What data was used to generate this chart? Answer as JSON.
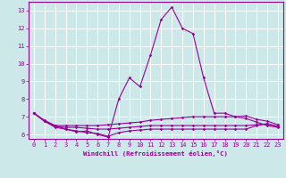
{
  "xlabel": "Windchill (Refroidissement éolien,°C)",
  "x_values": [
    0,
    1,
    2,
    3,
    4,
    5,
    6,
    7,
    8,
    9,
    10,
    11,
    12,
    13,
    14,
    15,
    16,
    17,
    18,
    19,
    20,
    21,
    22,
    23
  ],
  "line1": [
    7.2,
    6.8,
    6.5,
    6.3,
    6.15,
    6.2,
    6.0,
    5.85,
    8.0,
    9.2,
    8.7,
    10.5,
    12.5,
    13.2,
    12.0,
    11.7,
    9.2,
    7.2,
    7.2,
    7.0,
    6.9,
    6.7,
    6.5,
    6.4
  ],
  "line2": [
    7.2,
    6.75,
    6.5,
    6.5,
    6.5,
    6.5,
    6.5,
    6.55,
    6.6,
    6.65,
    6.7,
    6.8,
    6.85,
    6.9,
    6.95,
    7.0,
    7.0,
    7.0,
    7.0,
    7.0,
    7.05,
    6.85,
    6.75,
    6.55
  ],
  "line3": [
    7.2,
    6.75,
    6.45,
    6.4,
    6.4,
    6.35,
    6.3,
    6.3,
    6.35,
    6.4,
    6.45,
    6.5,
    6.5,
    6.5,
    6.5,
    6.5,
    6.5,
    6.5,
    6.5,
    6.5,
    6.5,
    6.55,
    6.6,
    6.45
  ],
  "line4": [
    7.2,
    6.75,
    6.4,
    6.3,
    6.2,
    6.1,
    6.05,
    5.9,
    6.1,
    6.2,
    6.25,
    6.3,
    6.3,
    6.3,
    6.3,
    6.3,
    6.3,
    6.3,
    6.3,
    6.3,
    6.3,
    6.5,
    6.6,
    6.45
  ],
  "line_color": "#990099",
  "bg_color": "#cce8e8",
  "grid_color": "#ffffff",
  "ylim_min": 5.75,
  "ylim_max": 13.5,
  "yticks": [
    6,
    7,
    8,
    9,
    10,
    11,
    12,
    13
  ],
  "marker": "D",
  "marker_size": 1.8,
  "linewidth": 0.8,
  "tick_fontsize": 5.0,
  "xlabel_fontsize": 5.2
}
